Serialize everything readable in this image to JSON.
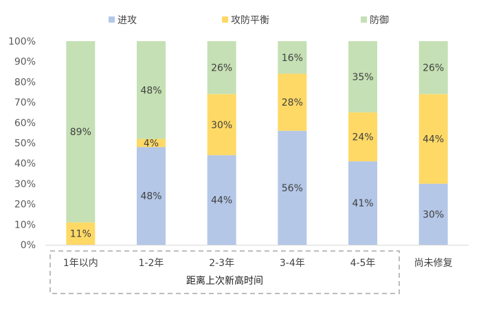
{
  "chart_data": {
    "type": "bar",
    "stacked": true,
    "percent": true,
    "categories": [
      "1年以内",
      "1-2年",
      "2-3年",
      "3-4年",
      "4-5年",
      "尚未修复"
    ],
    "series": [
      {
        "name": "进攻",
        "color": "#b4c7e7",
        "values": [
          0,
          48,
          44,
          56,
          41,
          30
        ],
        "labels": [
          "",
          "48%",
          "44%",
          "56%",
          "41%",
          "30%"
        ]
      },
      {
        "name": "攻防平衡",
        "color": "#ffd966",
        "values": [
          11,
          4,
          30,
          28,
          24,
          44
        ],
        "labels": [
          "11%",
          "4%",
          "30%",
          "28%",
          "24%",
          "44%"
        ]
      },
      {
        "name": "防御",
        "color": "#c5e0b4",
        "values": [
          89,
          48,
          26,
          16,
          35,
          26
        ],
        "labels": [
          "89%",
          "48%",
          "26%",
          "16%",
          "35%",
          "26%"
        ]
      }
    ],
    "ylim": [
      0,
      100
    ],
    "yticks": [
      "0%",
      "10%",
      "20%",
      "30%",
      "40%",
      "50%",
      "60%",
      "70%",
      "80%",
      "90%",
      "100%"
    ],
    "group_label": "距离上次新高时间",
    "legend_position": "top",
    "grid": false
  }
}
